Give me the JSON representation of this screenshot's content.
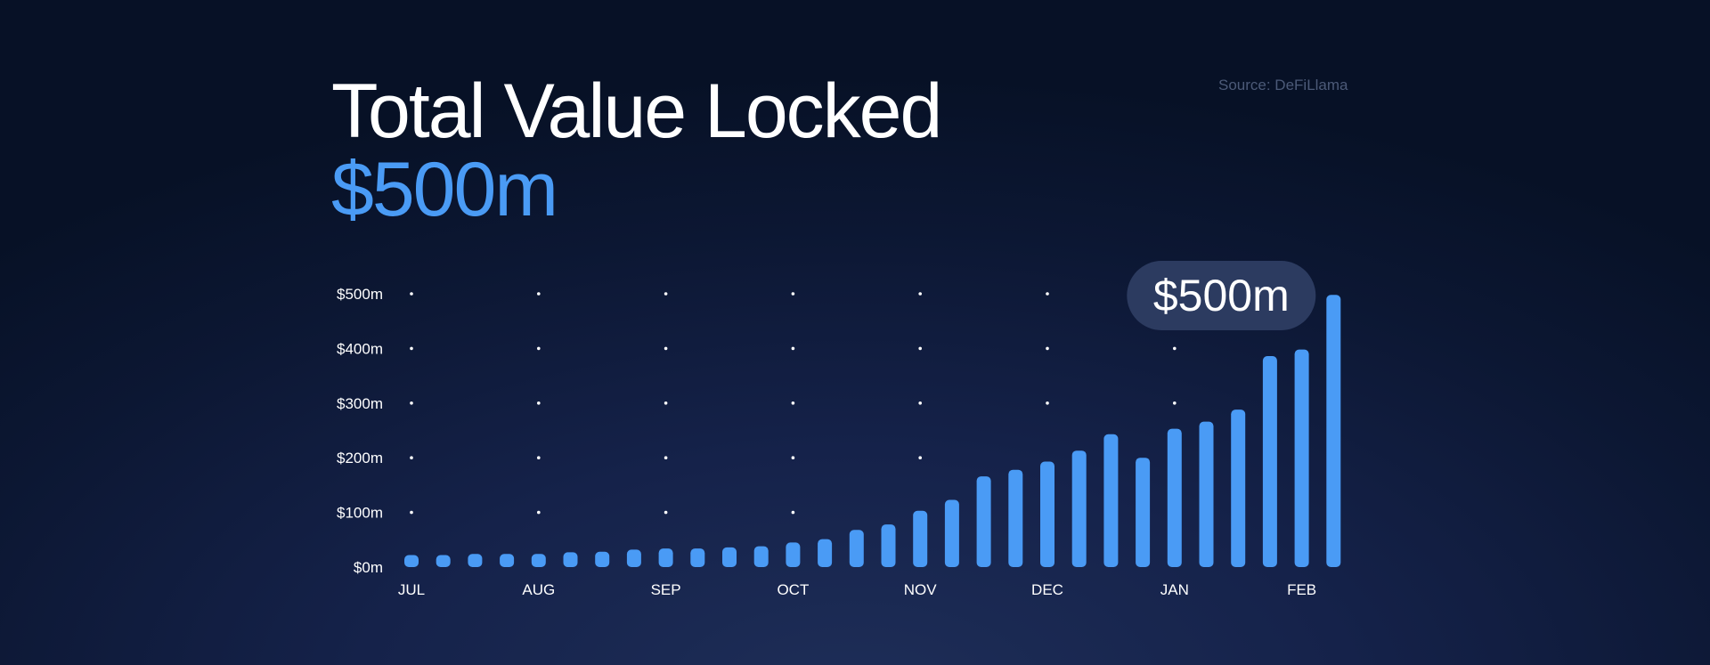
{
  "slide": {
    "title": "Total Value Locked",
    "subtitle": "$500m",
    "source": "Source: DeFiLlama"
  },
  "colors": {
    "bar": "#4a9bf5",
    "accent_text": "#4a9bf5",
    "grid_dot": "#ffffff",
    "callout_bg": "#2c3b60",
    "source_text": "#4c5a78"
  },
  "chart_data": {
    "type": "bar",
    "title": "Total Value Locked",
    "xlabel": "",
    "ylabel": "",
    "ylim": [
      0,
      500
    ],
    "y_ticks": [
      "$0m",
      "$100m",
      "$200m",
      "$300m",
      "$400m",
      "$500m"
    ],
    "x_tick_labels": [
      "JUL",
      "AUG",
      "SEP",
      "OCT",
      "NOV",
      "DEC",
      "JAN",
      "FEB"
    ],
    "x_tick_positions": [
      0,
      4,
      8,
      12,
      16,
      20,
      24,
      28
    ],
    "grid": "dotted",
    "values": [
      22,
      22,
      24,
      24,
      24,
      27,
      28,
      32,
      34,
      34,
      36,
      38,
      45,
      51,
      68,
      78,
      103,
      123,
      166,
      178,
      193,
      213,
      243,
      200,
      253,
      266,
      288,
      386,
      398,
      498
    ],
    "annotation": {
      "text": "$500m",
      "bar_index": 29
    }
  }
}
